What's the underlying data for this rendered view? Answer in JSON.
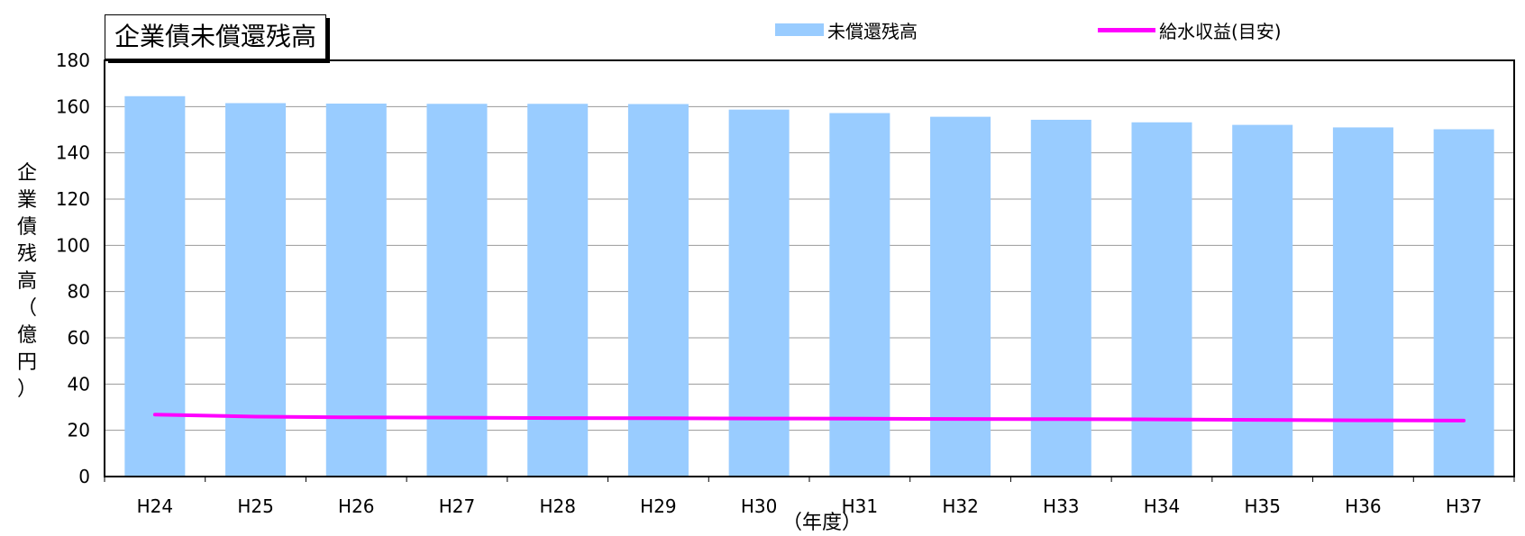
{
  "chart_data": {
    "type": "bar",
    "title": "企業債未償還残高",
    "ylabel": "企業債残高（億円）",
    "xlabel": "（年度）",
    "ylim": [
      0,
      180
    ],
    "yticks": [
      0,
      20,
      40,
      60,
      80,
      100,
      120,
      140,
      160,
      180
    ],
    "grid": true,
    "legend_position": "top-right",
    "categories": [
      "H24",
      "H25",
      "H26",
      "H27",
      "H28",
      "H29",
      "H30",
      "H31",
      "H32",
      "H33",
      "H34",
      "H35",
      "H36",
      "H37"
    ],
    "series": [
      {
        "name": "未償還残高",
        "type": "bar",
        "color": "#99ccff",
        "values": [
          164.5,
          161.5,
          161.3,
          161.2,
          161.2,
          161.1,
          158.7,
          157.2,
          155.6,
          154.3,
          153.2,
          152.1,
          151.0,
          150.2
        ]
      },
      {
        "name": "給水収益(目安)",
        "type": "line",
        "color": "#ff00ff",
        "values": [
          26.8,
          25.9,
          25.6,
          25.5,
          25.3,
          25.2,
          25.1,
          25.0,
          24.9,
          24.8,
          24.7,
          24.5,
          24.3,
          24.2
        ]
      }
    ]
  }
}
